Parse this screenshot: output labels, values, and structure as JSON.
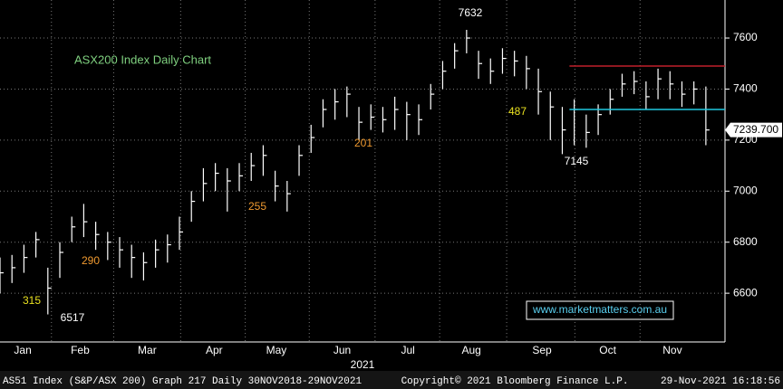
{
  "chart_data": {
    "type": "hlc_bar",
    "title": "ASX200 Index Daily Chart",
    "watermark": "www.marketmatters.com.au",
    "footer_left": "AS51 Index (S&P/ASX 200) Graph 217  Daily 30NOV2018-29NOV2021",
    "footer_center": "Copyright© 2021 Bloomberg Finance L.P.",
    "footer_right": "29-Nov-2021 16:18:56",
    "year_label": "2021",
    "color": "#ffffff",
    "x": [
      0,
      1,
      2,
      3,
      4,
      5,
      6,
      7,
      8,
      9,
      10,
      11,
      12,
      13,
      14,
      15,
      16,
      17,
      18,
      19,
      20,
      21,
      22,
      23,
      24,
      25,
      26,
      27,
      28,
      29,
      30,
      31,
      32,
      33,
      34,
      35,
      36,
      37,
      38,
      39,
      40,
      41,
      42,
      43,
      44,
      45,
      46,
      47,
      48,
      49,
      50,
      51,
      52,
      53,
      54,
      55,
      56,
      57,
      58,
      59
    ],
    "high": [
      6740,
      6750,
      6790,
      6840,
      6700,
      6800,
      6900,
      6950,
      6880,
      6840,
      6820,
      6790,
      6760,
      6810,
      6830,
      6900,
      7000,
      7090,
      7110,
      7090,
      7110,
      7150,
      7180,
      7080,
      7040,
      7180,
      7260,
      7360,
      7400,
      7410,
      7330,
      7340,
      7330,
      7370,
      7350,
      7340,
      7420,
      7510,
      7580,
      7632,
      7550,
      7520,
      7560,
      7550,
      7530,
      7480,
      7390,
      7330,
      7360,
      7300,
      7340,
      7400,
      7460,
      7470,
      7430,
      7480,
      7470,
      7430,
      7430,
      7410
    ],
    "low": [
      6600,
      6640,
      6680,
      6740,
      6517,
      6660,
      6800,
      6820,
      6770,
      6730,
      6700,
      6660,
      6650,
      6700,
      6720,
      6770,
      6880,
      6960,
      7000,
      6920,
      7000,
      7040,
      7060,
      6960,
      6920,
      7060,
      7150,
      7250,
      7280,
      7290,
      7200,
      7240,
      7230,
      7240,
      7200,
      7220,
      7320,
      7400,
      7480,
      7540,
      7440,
      7420,
      7460,
      7450,
      7400,
      7300,
      7200,
      7145,
      7180,
      7170,
      7220,
      7300,
      7370,
      7380,
      7320,
      7360,
      7360,
      7330,
      7340,
      7180
    ],
    "close": [
      6680,
      6700,
      6740,
      6810,
      6620,
      6760,
      6860,
      6880,
      6830,
      6800,
      6770,
      6740,
      6720,
      6770,
      6790,
      6840,
      6960,
      7030,
      7070,
      7040,
      7060,
      7100,
      7140,
      7020,
      6990,
      7140,
      7210,
      7320,
      7350,
      7380,
      7270,
      7290,
      7280,
      7320,
      7300,
      7280,
      7380,
      7470,
      7550,
      7600,
      7500,
      7470,
      7520,
      7510,
      7480,
      7390,
      7330,
      7240,
      7320,
      7230,
      7300,
      7360,
      7420,
      7430,
      7370,
      7440,
      7420,
      7380,
      7400,
      7239.7
    ],
    "last_price": 7239.7,
    "last_price_label": "7239.700",
    "xlim": [
      0,
      60.6
    ],
    "xticks": [
      {
        "value": 1.9,
        "label": "Jan"
      },
      {
        "value": 6.7,
        "label": "Feb"
      },
      {
        "value": 12.3,
        "label": "Mar"
      },
      {
        "value": 17.9,
        "label": "Apr"
      },
      {
        "value": 23.1,
        "label": "May"
      },
      {
        "value": 28.6,
        "label": "Jun"
      },
      {
        "value": 34.1,
        "label": "Jul"
      },
      {
        "value": 39.4,
        "label": "Aug"
      },
      {
        "value": 45.3,
        "label": "Sep"
      },
      {
        "value": 50.8,
        "label": "Oct"
      },
      {
        "value": 56.2,
        "label": "Nov"
      }
    ],
    "ylim": [
      6409,
      7749
    ],
    "yticks": [
      6600,
      6800,
      7000,
      7200,
      7400,
      7600
    ],
    "grid": true,
    "hlines": [
      {
        "value": 7490,
        "color": "#c0202a",
        "start": 47.6
      },
      {
        "value": 7320,
        "color": "#20c8e0",
        "start": 47.6
      }
    ],
    "annotations": [
      {
        "text": "7632",
        "color": "#ffffff"
      },
      {
        "text": "315",
        "color": "#e8e020"
      },
      {
        "text": "6517",
        "color": "#ffffff"
      },
      {
        "text": "290",
        "color": "#f09a30"
      },
      {
        "text": "255",
        "color": "#f09a30"
      },
      {
        "text": "201",
        "color": "#f09a30"
      },
      {
        "text": "487",
        "color": "#e8e020"
      },
      {
        "text": "7145",
        "color": "#ffffff"
      }
    ]
  }
}
